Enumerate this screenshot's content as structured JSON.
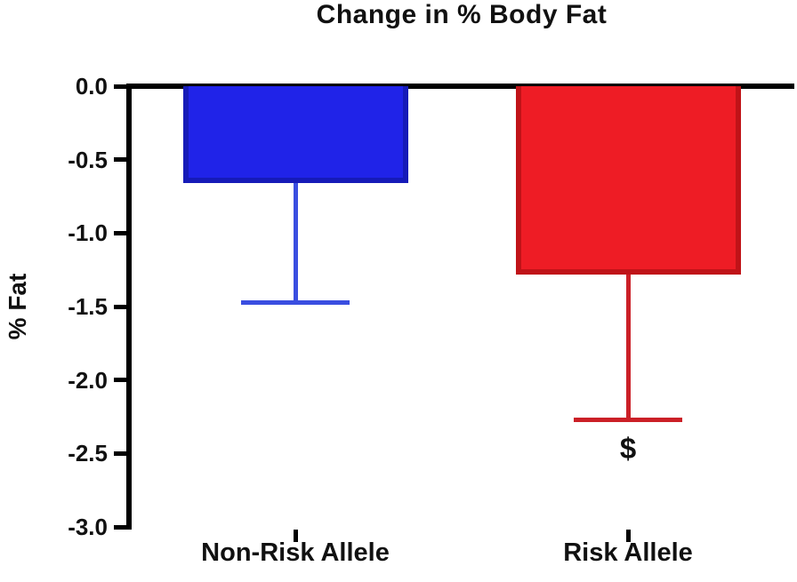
{
  "chart_data": {
    "type": "bar",
    "title": "Change in % Body Fat",
    "ylabel": "% Fat",
    "xlabel": "",
    "categories": [
      "Non-Risk Allele",
      "Risk Allele"
    ],
    "values": [
      -0.66,
      -1.28
    ],
    "error_low_ends": [
      -1.47,
      -2.27
    ],
    "ylim": [
      -3.0,
      0.0
    ],
    "yticks": [
      {
        "label": "0.0",
        "value": 0.0
      },
      {
        "label": "-0.5",
        "value": -0.5
      },
      {
        "label": "-1.0",
        "value": -1.0
      },
      {
        "label": "-1.5",
        "value": -1.5
      },
      {
        "label": "-2.0",
        "value": -2.0
      },
      {
        "label": "-2.5",
        "value": -2.5
      },
      {
        "label": "-3.0",
        "value": -3.0
      }
    ],
    "grid": false,
    "legend": false,
    "bar_fill_colors": [
      "#2023e8",
      "#ee1c25"
    ],
    "bar_border_colors": [
      "#161bb8",
      "#c01318"
    ],
    "error_bar_colors": [
      "#3a4ee0",
      "#cb2027"
    ],
    "axis_color": "#000000",
    "text_color": "#111111",
    "annotations": [
      {
        "text": "$",
        "category_index": 1,
        "y": -2.47
      }
    ]
  }
}
